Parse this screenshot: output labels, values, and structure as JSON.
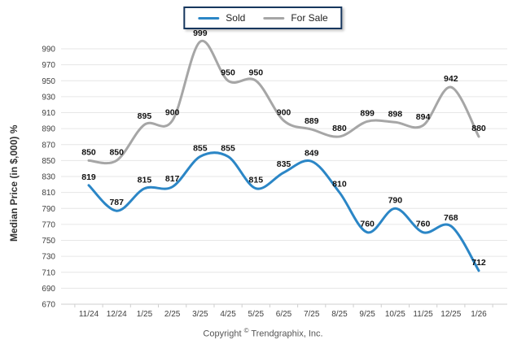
{
  "chart_data": {
    "type": "line",
    "title": "",
    "xlabel": "",
    "ylabel": "Median Price (in $,000) %",
    "ylim": [
      670,
      990
    ],
    "ytick_step": 20,
    "grid": true,
    "legend_position": "top-center",
    "line_style": "smooth-spline",
    "categories": [
      "11/24",
      "12/24",
      "1/25",
      "2/25",
      "3/25",
      "4/25",
      "5/25",
      "6/25",
      "7/25",
      "8/25",
      "9/25",
      "10/25",
      "11/25",
      "12/25",
      "1/26"
    ],
    "series": [
      {
        "name": "Sold",
        "color": "#2b86c6",
        "values": [
          819,
          787,
          815,
          817,
          855,
          855,
          815,
          835,
          849,
          810,
          760,
          790,
          760,
          768,
          712
        ]
      },
      {
        "name": "For Sale",
        "color": "#a6a6a6",
        "values": [
          850,
          850,
          895,
          900,
          999,
          950,
          950,
          900,
          889,
          880,
          899,
          898,
          894,
          942,
          880
        ]
      }
    ]
  },
  "legend": {
    "border_color": "#17375e"
  },
  "axis_style": {
    "tick_label_color": "#404040",
    "gridline_color": "#e6e6e6",
    "axisline_color": "#cfcfcf",
    "data_label_color": "#111111"
  },
  "footer": {
    "prefix": "Copyright",
    "symbol": "©",
    "company": "Trendgraphix, Inc."
  }
}
